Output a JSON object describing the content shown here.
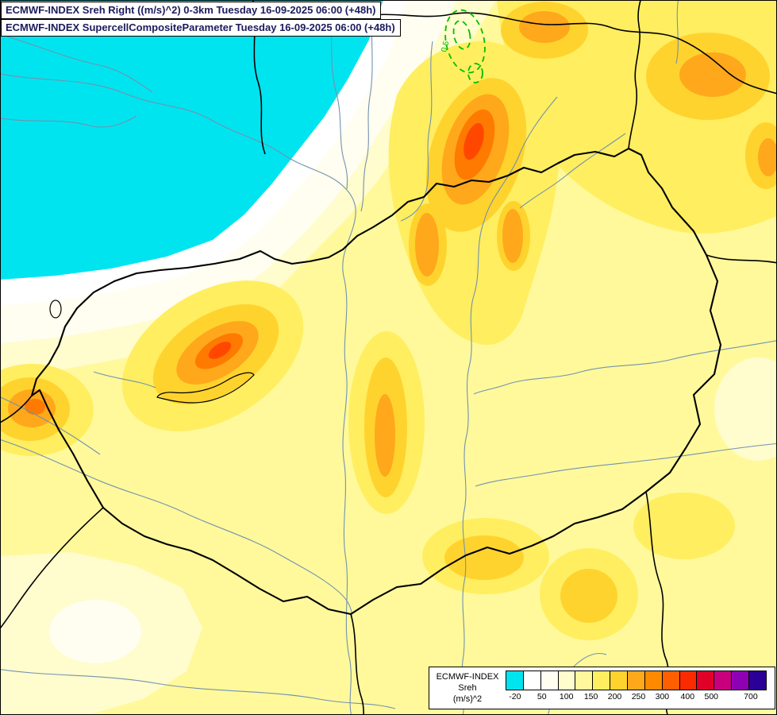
{
  "header": {
    "line1": "ECMWF-INDEX Sreh Right ((m/s)^2) 0-3km Tuesday 16-09-2025 06:00 (+48h)",
    "line2": "ECMWF-INDEX SupercellCompositeParameter Tuesday 16-09-2025 06:00 (+48h)"
  },
  "map": {
    "contour_label": "0.5",
    "palette": {
      "base_yellow": "#FFF99C",
      "pale_yellow": "#FFFCCE",
      "ivory": "#FFFEF0",
      "white": "#FFFFFF",
      "cyan": "#00E4F0",
      "yellow_deep": "#FFEE60",
      "gold": "#FFD32E",
      "orange": "#FFA81C",
      "dark_orange": "#FF7A00",
      "red_orange": "#FF4700",
      "river": "#7292B0",
      "border": "#000000",
      "contour_green": "#00BE00"
    }
  },
  "legend": {
    "title_line1": "ECMWF-INDEX",
    "title_line2": "Sreh",
    "title_line3": "(m/s)^2",
    "ticks": [
      "-20",
      "50",
      "100",
      "150",
      "200",
      "250",
      "300",
      "400",
      "500",
      "700"
    ],
    "tick_positions": [
      0.036,
      0.139,
      0.233,
      0.327,
      0.418,
      0.509,
      0.6,
      0.697,
      0.788,
      0.939
    ],
    "swatches": [
      "#00E4F0",
      "#FFFFFF",
      "#FFFEF0",
      "#FFFCCE",
      "#FFF99C",
      "#FFEE60",
      "#FFD32E",
      "#FFA81C",
      "#FF8A00",
      "#FF5F00",
      "#FA2B00",
      "#E00028",
      "#C8007D",
      "#8E00B4",
      "#2B0096"
    ]
  }
}
